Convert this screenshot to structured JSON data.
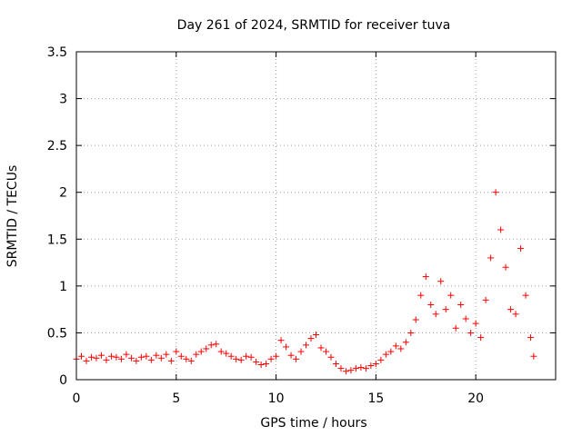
{
  "chart_data": {
    "type": "scatter",
    "title": "Day 261 of 2024, SRMTID for receiver tuva",
    "xlabel": "GPS time / hours",
    "ylabel": "SRMTID / TECUs",
    "xlim": [
      0,
      24
    ],
    "ylim": [
      0,
      3.5
    ],
    "grid": true,
    "x_ticks": [
      0,
      5,
      10,
      15,
      20
    ],
    "x_tick_labels": [
      "0",
      "5",
      "10",
      "15",
      "20"
    ],
    "y_ticks": [
      0,
      0.5,
      1,
      1.5,
      2,
      2.5,
      3,
      3.5
    ],
    "y_tick_labels": [
      "0",
      "0.5",
      "1",
      "1.5",
      "2",
      "2.5",
      "3",
      "3.5"
    ],
    "marker": "plus",
    "marker_color": "#ff0000",
    "series": [
      {
        "name": "SRMTID",
        "x": [
          0.0,
          0.25,
          0.5,
          0.75,
          1.0,
          1.25,
          1.5,
          1.75,
          2.0,
          2.25,
          2.5,
          2.75,
          3.0,
          3.25,
          3.5,
          3.75,
          4.0,
          4.25,
          4.5,
          4.75,
          5.0,
          5.25,
          5.5,
          5.75,
          6.0,
          6.25,
          6.5,
          6.75,
          7.0,
          7.25,
          7.5,
          7.75,
          8.0,
          8.25,
          8.5,
          8.75,
          9.0,
          9.25,
          9.5,
          9.75,
          10.0,
          10.25,
          10.5,
          10.75,
          11.0,
          11.25,
          11.5,
          11.75,
          12.0,
          12.25,
          12.5,
          12.75,
          13.0,
          13.25,
          13.5,
          13.75,
          14.0,
          14.25,
          14.5,
          14.75,
          15.0,
          15.25,
          15.5,
          15.75,
          16.0,
          16.25,
          16.5,
          16.75,
          17.0,
          17.25,
          17.5,
          17.75,
          18.0,
          18.25,
          18.5,
          18.75,
          19.0,
          19.25,
          19.5,
          19.75,
          20.0,
          20.25,
          20.5,
          20.75,
          21.0,
          21.25,
          21.5,
          21.75,
          22.0,
          22.25,
          22.5,
          22.75,
          22.9
        ],
        "y": [
          0.22,
          0.25,
          0.2,
          0.24,
          0.23,
          0.26,
          0.21,
          0.25,
          0.24,
          0.22,
          0.27,
          0.23,
          0.2,
          0.24,
          0.25,
          0.21,
          0.26,
          0.23,
          0.27,
          0.2,
          0.3,
          0.25,
          0.22,
          0.2,
          0.27,
          0.3,
          0.33,
          0.37,
          0.38,
          0.3,
          0.28,
          0.25,
          0.22,
          0.21,
          0.25,
          0.24,
          0.19,
          0.16,
          0.17,
          0.22,
          0.25,
          0.42,
          0.35,
          0.26,
          0.22,
          0.3,
          0.37,
          0.44,
          0.48,
          0.34,
          0.3,
          0.24,
          0.17,
          0.12,
          0.09,
          0.1,
          0.12,
          0.13,
          0.12,
          0.15,
          0.17,
          0.21,
          0.27,
          0.3,
          0.36,
          0.33,
          0.4,
          0.5,
          0.64,
          0.9,
          1.1,
          0.8,
          0.7,
          1.05,
          0.75,
          0.9,
          0.55,
          0.8,
          0.65,
          0.5,
          0.6,
          0.45,
          0.85,
          1.3,
          2.0,
          1.6,
          1.2,
          0.75,
          0.7,
          1.4,
          0.9,
          0.45,
          0.25
        ]
      }
    ]
  }
}
